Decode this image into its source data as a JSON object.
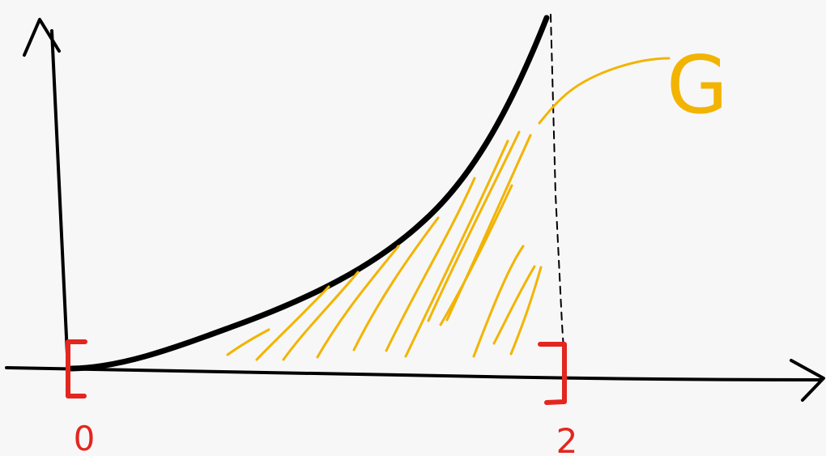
{
  "diagram": {
    "tick_labels": {
      "left": "0",
      "right": "2"
    },
    "region_label": "G",
    "colors": {
      "axes_and_curve": "#000000",
      "interval_markers": "#e3261f",
      "shaded_region": "#f2b400",
      "background": "#f7f7f7"
    }
  }
}
